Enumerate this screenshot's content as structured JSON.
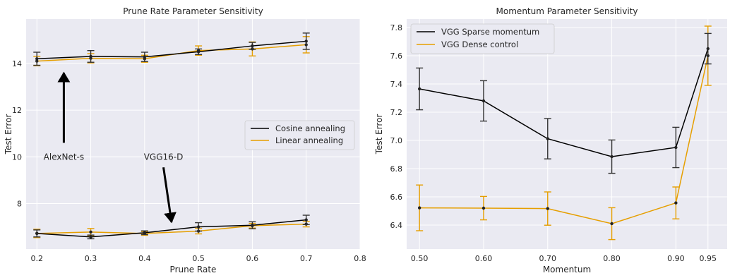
{
  "chart_data": [
    {
      "type": "line",
      "title": "Prune Rate Parameter Sensitivity",
      "xlabel": "Prune Rate",
      "ylabel": "Test Error",
      "xlim": [
        0.18,
        0.8
      ],
      "ylim": [
        6.05,
        15.9
      ],
      "xticks": [
        0.2,
        0.3,
        0.4,
        0.5,
        0.6,
        0.7,
        0.8
      ],
      "xtick_labels": [
        "0.2",
        "0.3",
        "0.4",
        "0.5",
        "0.6",
        "0.7",
        "0.8"
      ],
      "yticks": [
        8,
        10,
        12,
        14
      ],
      "ytick_labels": [
        "8",
        "10",
        "12",
        "14"
      ],
      "grid": true,
      "legend_position": "center-right",
      "x": [
        0.2,
        0.3,
        0.4,
        0.5,
        0.6,
        0.7
      ],
      "series": [
        {
          "name": "Cosine annealing",
          "color": "#000000",
          "values": [
            14.2,
            14.3,
            14.28,
            14.5,
            14.75,
            14.95
          ],
          "err": [
            0.28,
            0.25,
            0.2,
            0.12,
            0.15,
            0.35
          ]
        },
        {
          "name": "Linear annealing",
          "color": "#e69f00",
          "values": [
            14.1,
            14.22,
            14.2,
            14.55,
            14.62,
            14.8
          ],
          "err": [
            0.2,
            0.2,
            0.15,
            0.2,
            0.3,
            0.35
          ]
        },
        {
          "name": "",
          "color": "#000000",
          "values": [
            6.72,
            6.57,
            6.75,
            7.0,
            7.07,
            7.3
          ],
          "err": [
            0.15,
            0.08,
            0.08,
            0.18,
            0.15,
            0.2
          ]
        },
        {
          "name": "",
          "color": "#e69f00",
          "values": [
            6.72,
            6.78,
            6.72,
            6.82,
            7.05,
            7.12
          ],
          "err": [
            0.18,
            0.15,
            0.08,
            0.12,
            0.1,
            0.12
          ]
        }
      ],
      "annotations": [
        {
          "text": "AlexNet-s",
          "x": 0.25,
          "y": 10.0,
          "arrow_from": [
            0.25,
            10.6
          ],
          "arrow_to": [
            0.25,
            13.6
          ]
        },
        {
          "text": "VGG16-D",
          "x": 0.435,
          "y": 10.0,
          "arrow_from": [
            0.435,
            9.55
          ],
          "arrow_to": [
            0.45,
            7.2
          ]
        }
      ]
    },
    {
      "type": "line",
      "title": "Momentum Parameter Sensitivity",
      "xlabel": "Momentum",
      "ylabel": "Test Error",
      "xlim": [
        0.48,
        0.98
      ],
      "ylim": [
        6.23,
        7.86
      ],
      "xticks": [
        0.5,
        0.6,
        0.7,
        0.8,
        0.9,
        0.95
      ],
      "xtick_labels": [
        "0.50",
        "0.60",
        "0.70",
        "0.80",
        "0.90",
        "0.95"
      ],
      "yticks": [
        6.4,
        6.6,
        6.8,
        7.0,
        7.2,
        7.4,
        7.6,
        7.8
      ],
      "ytick_labels": [
        "6.4",
        "6.6",
        "6.8",
        "7.0",
        "7.2",
        "7.4",
        "7.6",
        "7.8"
      ],
      "grid": true,
      "legend_position": "upper-left",
      "x": [
        0.5,
        0.6,
        0.7,
        0.8,
        0.9,
        0.95
      ],
      "series": [
        {
          "name": "VGG Sparse momentum",
          "color": "#000000",
          "values": [
            7.365,
            7.28,
            7.012,
            6.885,
            6.95,
            7.65
          ],
          "err": [
            0.148,
            0.143,
            0.143,
            0.118,
            0.143,
            0.108
          ]
        },
        {
          "name": "VGG Dense control",
          "color": "#e69f00",
          "values": [
            6.522,
            6.52,
            6.517,
            6.41,
            6.557,
            7.6
          ],
          "err": [
            0.162,
            0.083,
            0.118,
            0.113,
            0.113,
            0.21
          ]
        }
      ]
    }
  ]
}
